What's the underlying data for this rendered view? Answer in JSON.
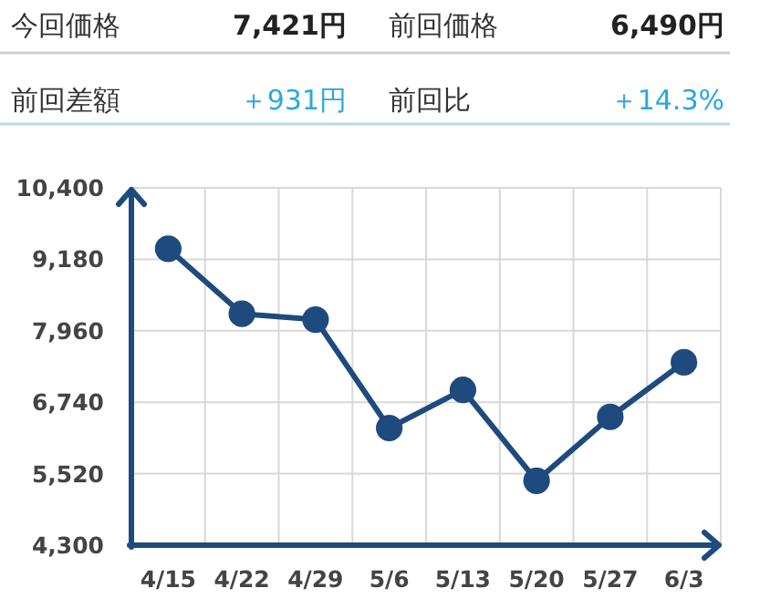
{
  "chart_data": {
    "type": "line",
    "annotations": [
      "今回価格",
      "7,421円",
      "前回価格",
      "6,490円",
      "前回差額",
      "＋931円",
      "前回比",
      "＋14.3%"
    ],
    "categories": [
      "4/15",
      "4/22",
      "4/29",
      "5/6",
      "5/13",
      "5/20",
      "5/27",
      "6/3"
    ],
    "series": [
      {
        "color": "#1e4a7e",
        "values": [
          9360,
          8250,
          8150,
          6300,
          6950,
          5400,
          6490,
          7421
        ]
      }
    ],
    "ylim": [
      4300,
      10400
    ],
    "yticks": [
      {
        "value": 4300,
        "label": "4,300"
      },
      {
        "value": 5520,
        "label": "5,520"
      },
      {
        "value": 6740,
        "label": "6,740"
      },
      {
        "value": 7960,
        "label": "7,960"
      },
      {
        "value": 9180,
        "label": "9,180"
      },
      {
        "value": 10400,
        "label": "10,400"
      }
    ],
    "grid": true,
    "marker": "circle",
    "line_style": "solid"
  }
}
